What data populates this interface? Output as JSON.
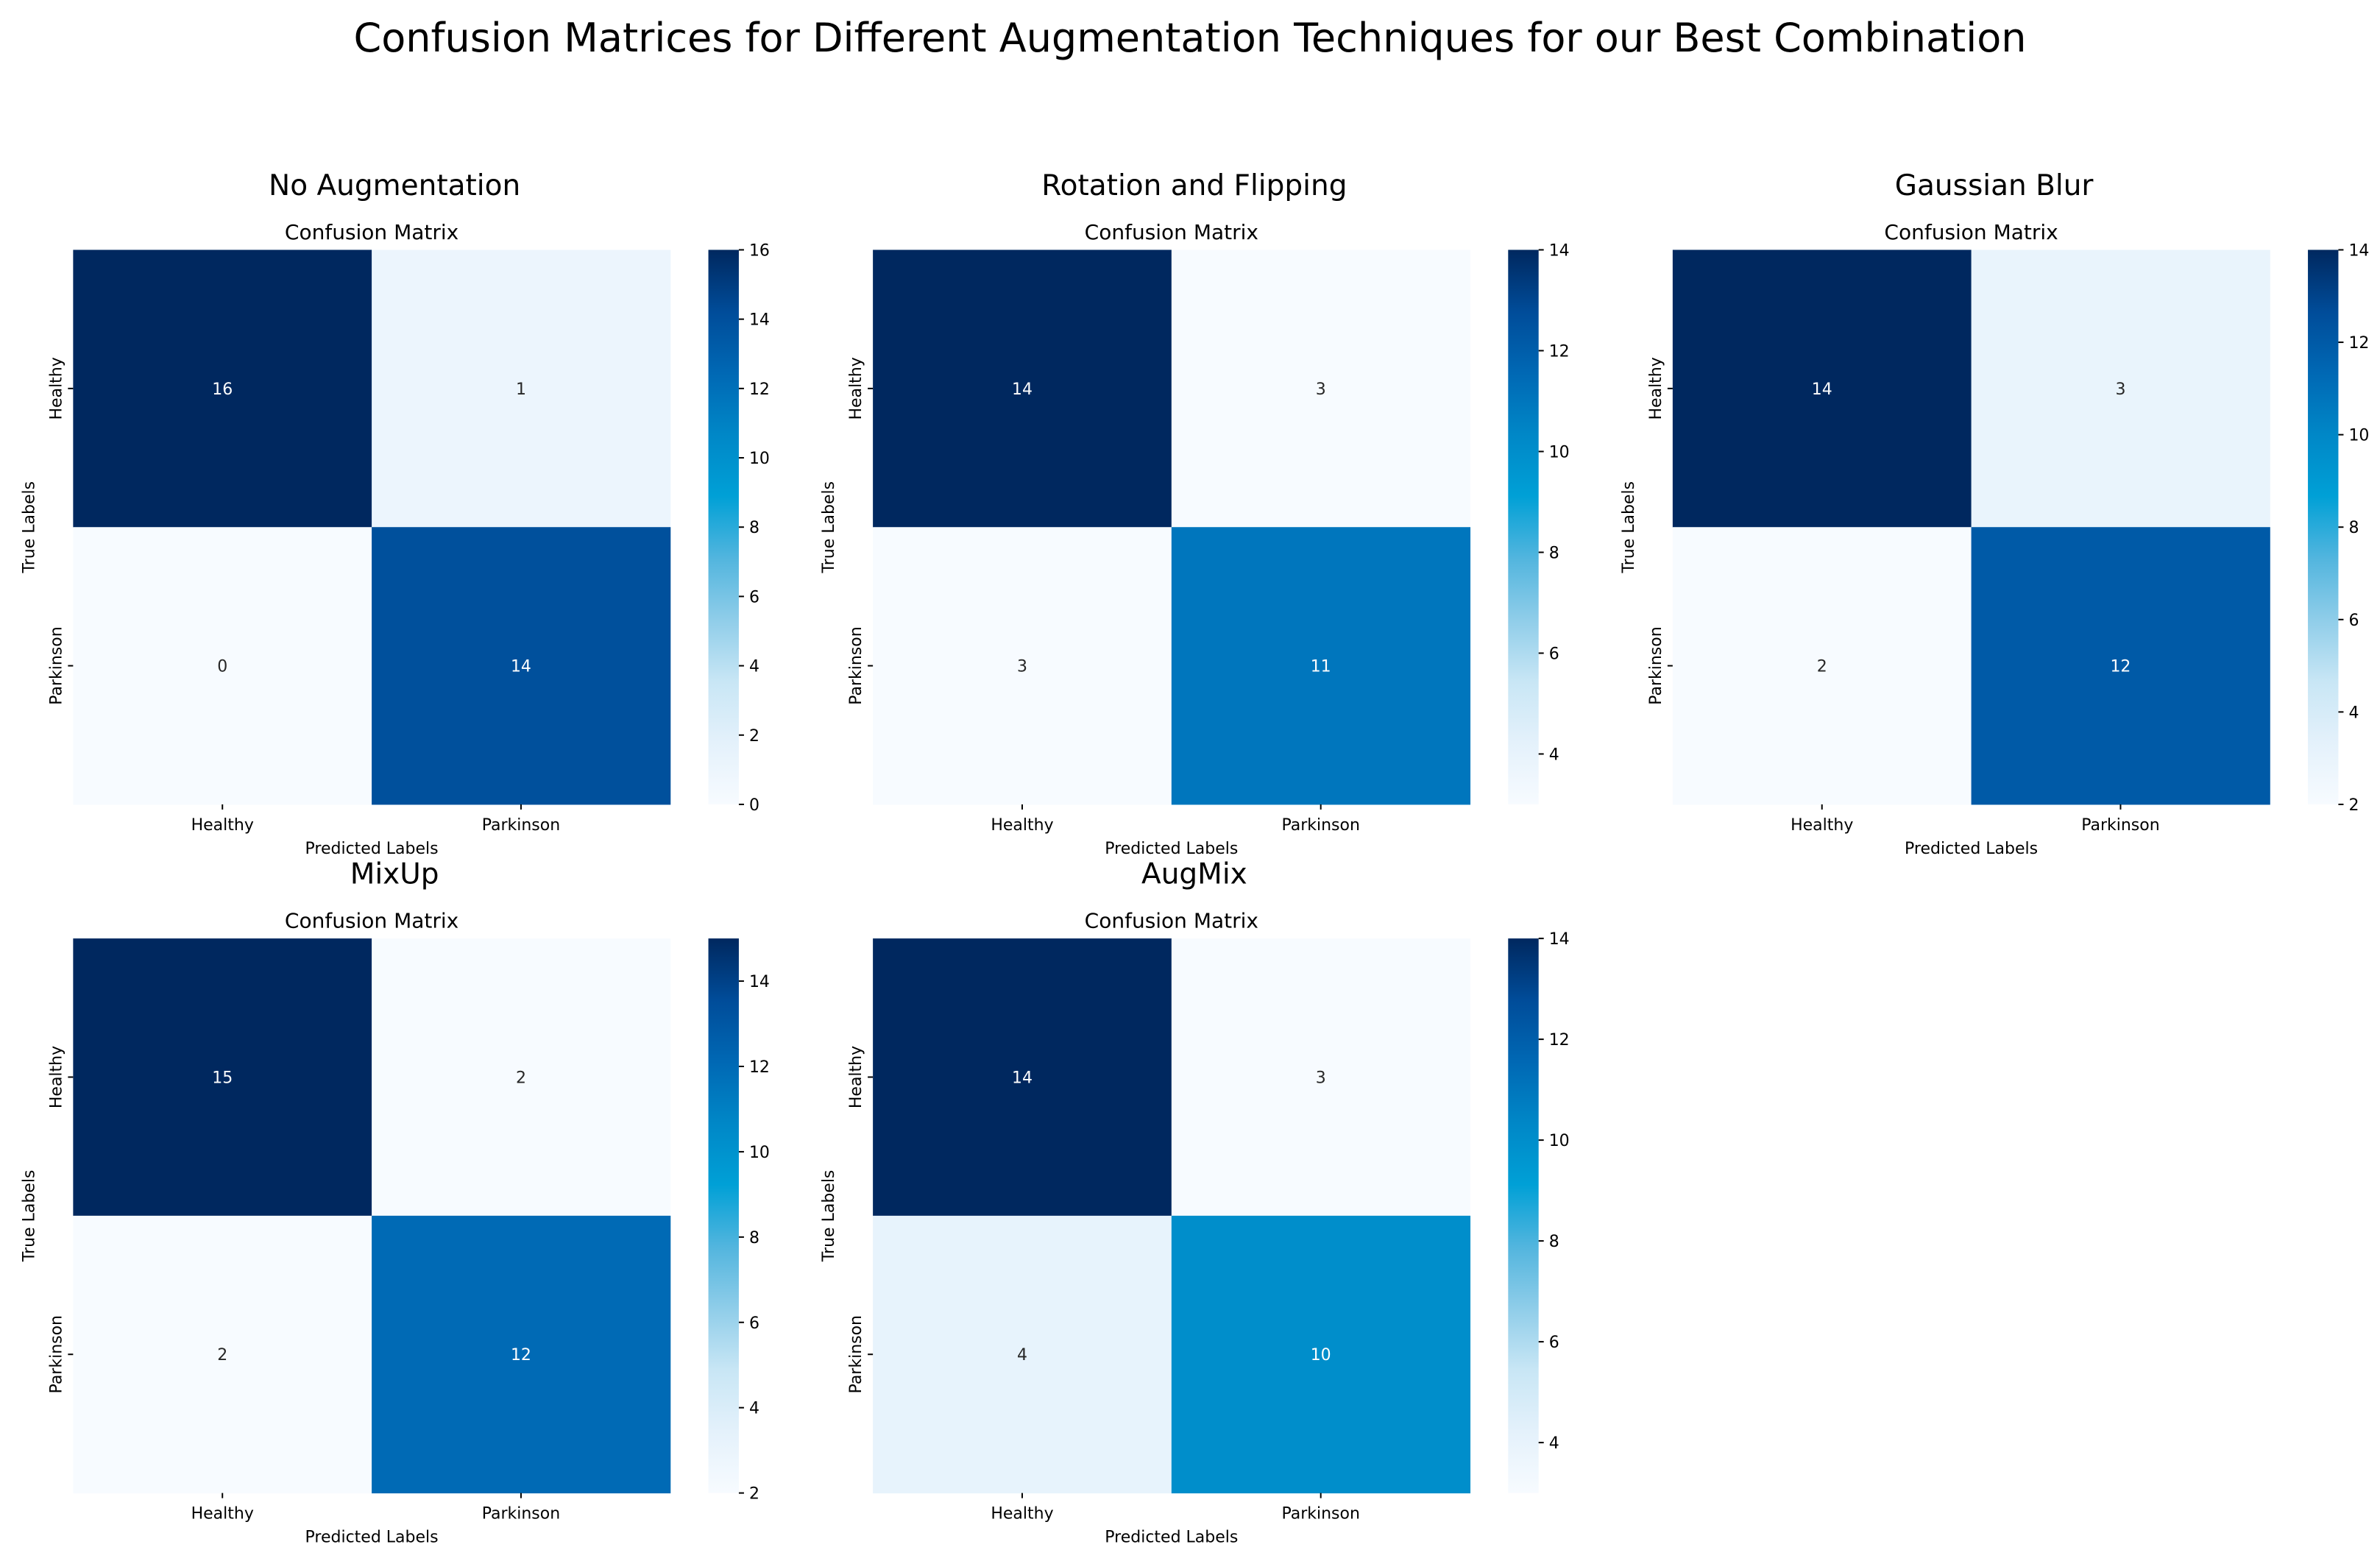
{
  "figure": {
    "title": "Confusion Matrices for Different Augmentation Techniques for our Best Combination"
  },
  "colormap": {
    "name": "Blues",
    "stops": [
      "#f7fbff",
      "#e4f1fb",
      "#c8e6f5",
      "#8fcde9",
      "#52b5de",
      "#00a0d6",
      "#0087c7",
      "#0068b4",
      "#004c99",
      "#00285f"
    ]
  },
  "chart_data": [
    {
      "type": "heatmap",
      "panel_title": "No Augmentation",
      "title": "Confusion Matrix",
      "xlabel": "Predicted Labels",
      "ylabel": "True Labels",
      "x_categories": [
        "Healthy",
        "Parkinson"
      ],
      "y_categories": [
        "Healthy",
        "Parkinson"
      ],
      "values": [
        [
          16,
          1
        ],
        [
          0,
          14
        ]
      ],
      "vmin": 0,
      "vmax": 16,
      "colorbar_ticks": [
        0,
        2,
        4,
        6,
        8,
        10,
        12,
        14,
        16
      ]
    },
    {
      "type": "heatmap",
      "panel_title": "Rotation and Flipping",
      "title": "Confusion Matrix",
      "xlabel": "Predicted Labels",
      "ylabel": "True Labels",
      "x_categories": [
        "Healthy",
        "Parkinson"
      ],
      "y_categories": [
        "Healthy",
        "Parkinson"
      ],
      "values": [
        [
          14,
          3
        ],
        [
          3,
          11
        ]
      ],
      "vmin": 3,
      "vmax": 14,
      "colorbar_ticks": [
        4,
        6,
        8,
        10,
        12,
        14
      ]
    },
    {
      "type": "heatmap",
      "panel_title": "Gaussian Blur",
      "title": "Confusion Matrix",
      "xlabel": "Predicted Labels",
      "ylabel": "True Labels",
      "x_categories": [
        "Healthy",
        "Parkinson"
      ],
      "y_categories": [
        "Healthy",
        "Parkinson"
      ],
      "values": [
        [
          14,
          3
        ],
        [
          2,
          12
        ]
      ],
      "vmin": 2,
      "vmax": 14,
      "colorbar_ticks": [
        2,
        4,
        6,
        8,
        10,
        12,
        14
      ]
    },
    {
      "type": "heatmap",
      "panel_title": "MixUp",
      "title": "Confusion Matrix",
      "xlabel": "Predicted Labels",
      "ylabel": "True Labels",
      "x_categories": [
        "Healthy",
        "Parkinson"
      ],
      "y_categories": [
        "Healthy",
        "Parkinson"
      ],
      "values": [
        [
          15,
          2
        ],
        [
          2,
          12
        ]
      ],
      "vmin": 2,
      "vmax": 15,
      "colorbar_ticks": [
        2,
        4,
        6,
        8,
        10,
        12,
        14
      ]
    },
    {
      "type": "heatmap",
      "panel_title": "AugMix",
      "title": "Confusion Matrix",
      "xlabel": "Predicted Labels",
      "ylabel": "True Labels",
      "x_categories": [
        "Healthy",
        "Parkinson"
      ],
      "y_categories": [
        "Healthy",
        "Parkinson"
      ],
      "values": [
        [
          14,
          3
        ],
        [
          4,
          10
        ]
      ],
      "vmin": 3,
      "vmax": 14,
      "colorbar_ticks": [
        4,
        6,
        8,
        10,
        12,
        14
      ]
    }
  ]
}
